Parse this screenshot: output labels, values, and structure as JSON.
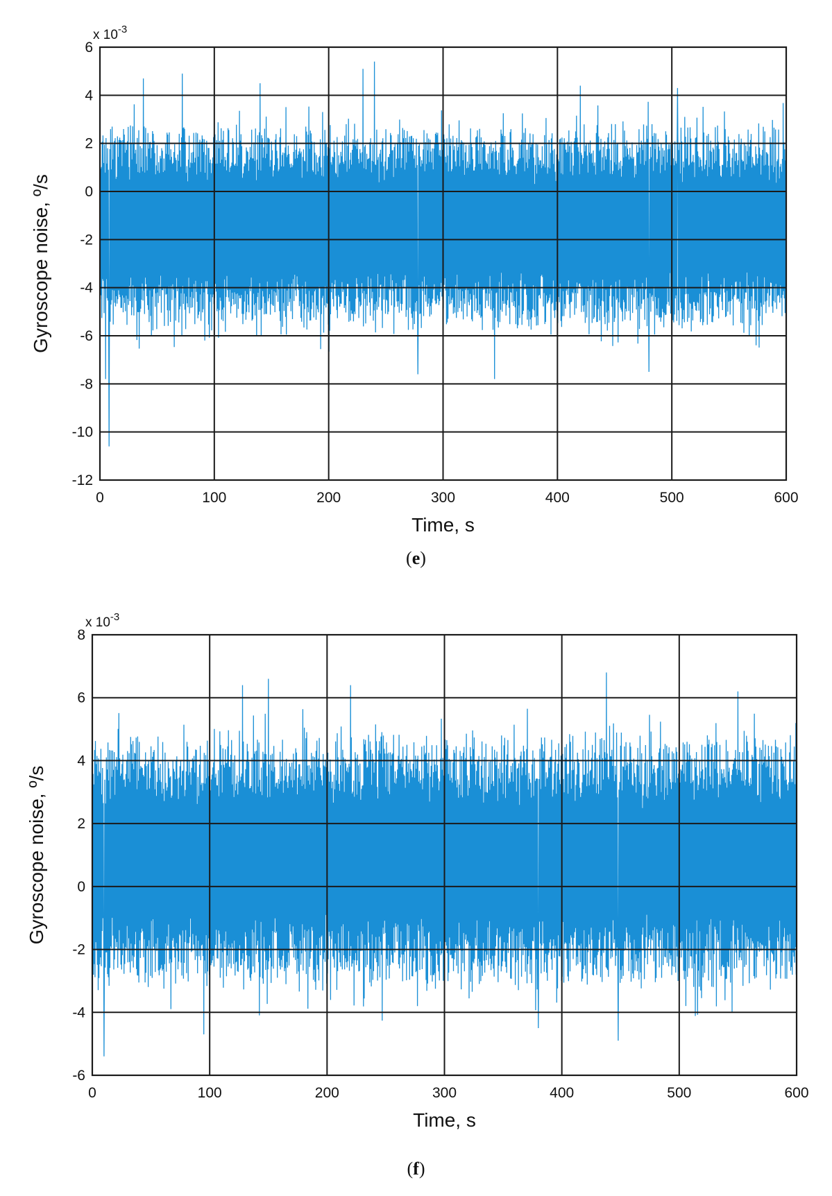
{
  "chart_data": [
    {
      "type": "line",
      "panel_label": "e",
      "xlabel": "Time, s",
      "ylabel": "Gyroscope noise, º/s",
      "y_multiplier": "x 10",
      "y_multiplier_exp": "-3",
      "xlim": [
        0,
        600
      ],
      "ylim": [
        -12,
        6
      ],
      "xticks": [
        0,
        100,
        200,
        300,
        400,
        500,
        600
      ],
      "yticks": [
        -12,
        -10,
        -8,
        -6,
        -4,
        -2,
        0,
        2,
        4,
        6
      ],
      "grid": true,
      "line_color": "#1a8fd6",
      "series": [
        {
          "x_range": [
            0,
            600
          ],
          "band_center": -1.5,
          "band_halfwidth": 4.0,
          "peaks": [
            [
              8,
              -10.6
            ],
            [
              5,
              -7.8
            ],
            [
              38,
              4.7
            ],
            [
              72,
              4.9
            ],
            [
              140,
              4.5
            ],
            [
              230,
              5.1
            ],
            [
              240,
              5.4
            ],
            [
              278,
              -7.6
            ],
            [
              345,
              -7.8
            ],
            [
              480,
              -7.5
            ],
            [
              505,
              4.3
            ],
            [
              420,
              4.4
            ]
          ]
        }
      ]
    },
    {
      "type": "line",
      "panel_label": "f",
      "xlabel": "Time, s",
      "ylabel": "Gyroscope noise, º/s",
      "y_multiplier": "x 10",
      "y_multiplier_exp": "-3",
      "xlim": [
        0,
        600
      ],
      "ylim": [
        -6,
        8
      ],
      "xticks": [
        0,
        100,
        200,
        300,
        400,
        500,
        600
      ],
      "yticks": [
        -6,
        -4,
        -2,
        0,
        2,
        4,
        6,
        8
      ],
      "grid": true,
      "line_color": "#1a8fd6",
      "series": [
        {
          "x_range": [
            0,
            600
          ],
          "band_center": 0.8,
          "band_halfwidth": 3.8,
          "peaks": [
            [
              10,
              -5.4
            ],
            [
              150,
              6.6
            ],
            [
              128,
              6.4
            ],
            [
              220,
              6.4
            ],
            [
              438,
              6.8
            ],
            [
              380,
              -4.5
            ],
            [
              448,
              -4.9
            ],
            [
              95,
              -4.7
            ],
            [
              550,
              6.2
            ]
          ]
        }
      ]
    }
  ]
}
